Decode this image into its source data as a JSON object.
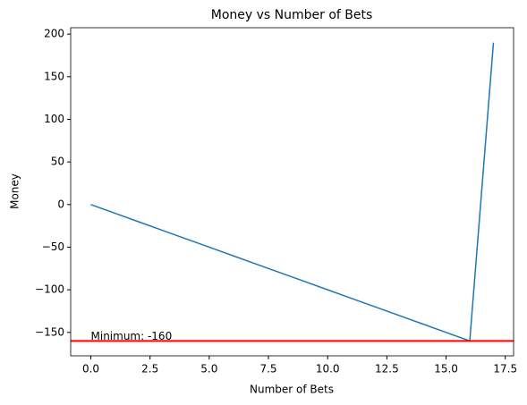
{
  "chart_data": {
    "type": "line",
    "title": "Money vs Number of Bets",
    "xlabel": "Number of Bets",
    "ylabel": "Money",
    "x": [
      0,
      1,
      2,
      3,
      4,
      5,
      6,
      7,
      8,
      9,
      10,
      11,
      12,
      13,
      14,
      15,
      16,
      17
    ],
    "series": [
      {
        "color": "#1f77b4",
        "values": [
          0,
          -10,
          -20,
          -30,
          -40,
          -50,
          -60,
          -70,
          -80,
          -90,
          -100,
          -110,
          -120,
          -130,
          -140,
          -150,
          -160,
          190
        ]
      }
    ],
    "hlines": [
      {
        "value": -160,
        "color": "#ff0000",
        "label": "Minimum: -160"
      }
    ],
    "xlim": [
      -0.85,
      17.85
    ],
    "xticks": [
      {
        "value": 0,
        "label": "0.0"
      },
      2.5,
      {
        "value": 5,
        "label": "5.0"
      },
      7.5,
      {
        "value": 10,
        "label": "10.0"
      },
      12.5,
      {
        "value": 15,
        "label": "15.0"
      },
      17.5
    ],
    "ylim": [
      -177.5,
      207.5
    ],
    "yticks": [
      {
        "value": -150,
        "label": "−150"
      },
      {
        "value": -100,
        "label": "−100"
      },
      {
        "value": -50,
        "label": "−50"
      },
      0,
      50,
      100,
      150,
      200
    ]
  }
}
